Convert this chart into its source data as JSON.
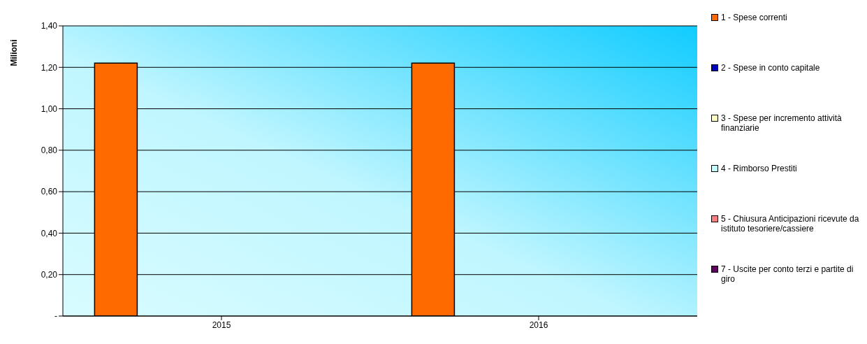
{
  "chart_data": {
    "type": "bar",
    "ylabel": "Milioni",
    "categories": [
      "2015",
      "2016"
    ],
    "series": [
      {
        "name": "1 - Spese correnti",
        "color": "#ff6a00",
        "values": [
          1.22,
          1.22
        ]
      },
      {
        "name": "2 - Spese in conto capitale",
        "color": "#0000c0",
        "values": [
          0,
          0
        ]
      },
      {
        "name": "3 - Spese per incremento attività finanziarie",
        "color": "#ffffc0",
        "values": [
          0,
          0
        ]
      },
      {
        "name": "4 - Rimborso Prestiti",
        "color": "#c0ffff",
        "values": [
          0,
          0
        ]
      },
      {
        "name": "5 - Chiusura Anticipazioni ricevute da istituto tesoriere/cassiere",
        "color": "#ff8080",
        "values": [
          0,
          0
        ]
      },
      {
        "name": "7 - Uscite per conto terzi e partite di giro",
        "color": "#600060",
        "values": [
          0,
          0
        ]
      }
    ],
    "ylim": [
      0,
      1.4
    ],
    "yticks": [
      {
        "value": 0,
        "label": "-"
      },
      {
        "value": 0.2,
        "label": "0,20"
      },
      {
        "value": 0.4,
        "label": "0,40"
      },
      {
        "value": 0.6,
        "label": "0,60"
      },
      {
        "value": 0.8,
        "label": "0,80"
      },
      {
        "value": 1.0,
        "label": "1,00"
      },
      {
        "value": 1.2,
        "label": "1,20"
      },
      {
        "value": 1.4,
        "label": "1,40"
      }
    ],
    "grid": "y",
    "legend": "right"
  }
}
